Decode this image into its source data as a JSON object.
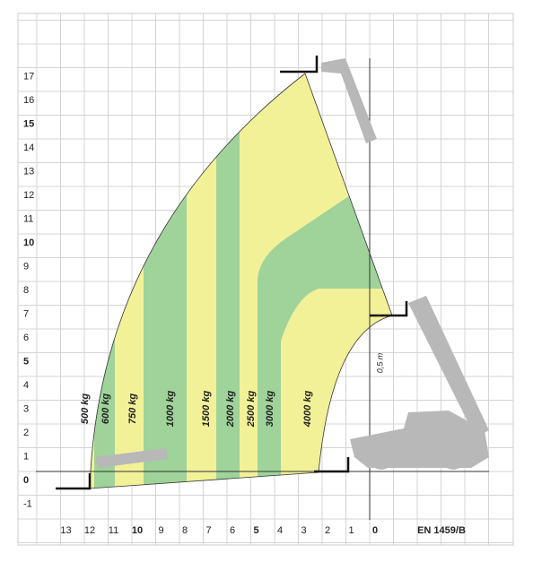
{
  "y_ticks": [
    "-1",
    "0",
    "1",
    "2",
    "3",
    "4",
    "5",
    "6",
    "7",
    "8",
    "9",
    "10",
    "11",
    "12",
    "13",
    "14",
    "15",
    "16",
    "17"
  ],
  "x_ticks": [
    "13",
    "12",
    "11",
    "10",
    "9",
    "8",
    "7",
    "6",
    "5",
    "4",
    "3",
    "2",
    "1",
    "0"
  ],
  "load_labels": [
    "500 kg",
    "600 kg",
    "750 kg",
    "1000 kg",
    "1500 kg",
    "2000 kg",
    "2500 kg",
    "3000 kg",
    "4000 kg"
  ],
  "standard": "EN 1459/B",
  "dimension": "0,5 m"
}
